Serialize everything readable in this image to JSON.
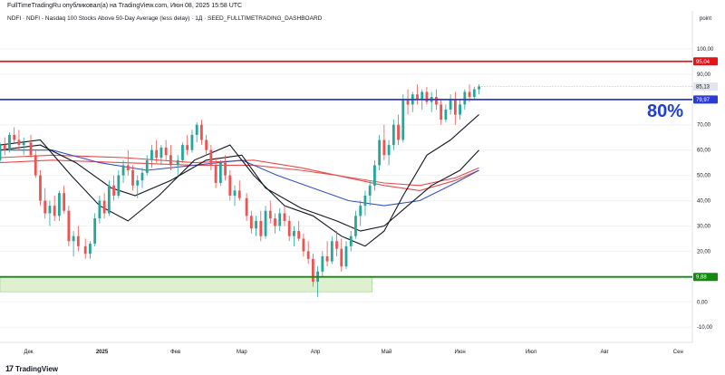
{
  "header": {
    "text": "FullTimeTradingRu опубликовал(а) на TradingView.com, Июн 08, 2025 15:58 UTC"
  },
  "legend": {
    "text": "NDFI · NDFI - Nasdaq 100 Stocks Above 50-Day Average (less delay) · 1Д · SEED_FULLTIMETRADING_DASHBOARD"
  },
  "annotation": {
    "text": "80%"
  },
  "branding": {
    "text": "TradingView"
  },
  "colors": {
    "up": "#26a69a",
    "down": "#ef5350",
    "red_line": "#e5141b",
    "blue_line": "#2b3bd6",
    "green_line": "#13890f",
    "zone_fill": "#dff0d0",
    "ema_red": "#ea4c4c",
    "ema_blue": "#3850c8",
    "ema_black": "#131722",
    "current_tag": "#e3e6ec"
  },
  "chart_data": {
    "type": "candlestick",
    "title": "NDFI - Nasdaq 100 Stocks Above 50-Day Average",
    "y_unit_label": "point",
    "ylim": [
      -16,
      115
    ],
    "y_ticks": [
      "100,00",
      "90,00",
      "80,00",
      "70,00",
      "60,00",
      "50,00",
      "40,00",
      "30,00",
      "20,00",
      "10,00",
      "0,00",
      "-10,00"
    ],
    "x_labels": [
      "Дек",
      "2025",
      "Фев",
      "Мар",
      "Апр",
      "Май",
      "Июн",
      "Июл",
      "Авг",
      "Сен"
    ],
    "x_label_days": [
      0,
      31,
      62,
      90,
      121,
      151,
      182,
      212,
      243,
      274
    ],
    "x_range_days": [
      -12,
      280
    ],
    "last_day": 190,
    "horizontal_levels": [
      {
        "value": 95.04,
        "label": "95,04",
        "color": "red_line"
      },
      {
        "value": 79.97,
        "label": "79,97",
        "color": "blue_line"
      },
      {
        "value": 9.88,
        "label": "9,88",
        "color": "green_line"
      }
    ],
    "current_value": {
      "value": 85.13,
      "label": "85,13"
    },
    "zone": {
      "x_from_day": -12,
      "x_to_day": 145,
      "y_from": 4,
      "y_to": 9.88
    },
    "moving_averages": [
      {
        "color": "ema_red",
        "values": [
          [
            -12,
            55
          ],
          [
            10,
            56
          ],
          [
            40,
            55
          ],
          [
            70,
            54
          ],
          [
            95,
            54
          ],
          [
            115,
            52
          ],
          [
            130,
            50
          ],
          [
            150,
            47
          ],
          [
            165,
            46
          ],
          [
            180,
            49
          ],
          [
            190,
            53
          ]
        ]
      },
      {
        "color": "ema_red",
        "values": [
          [
            -12,
            57
          ],
          [
            10,
            58
          ],
          [
            40,
            57
          ],
          [
            70,
            55
          ],
          [
            95,
            56
          ],
          [
            115,
            53
          ],
          [
            130,
            50
          ],
          [
            150,
            46
          ],
          [
            165,
            44
          ],
          [
            180,
            48
          ],
          [
            190,
            52
          ]
        ]
      },
      {
        "color": "ema_blue",
        "values": [
          [
            -12,
            60
          ],
          [
            10,
            60
          ],
          [
            30,
            55
          ],
          [
            50,
            52
          ],
          [
            70,
            54
          ],
          [
            90,
            56
          ],
          [
            105,
            50
          ],
          [
            120,
            45
          ],
          [
            135,
            40
          ],
          [
            150,
            38
          ],
          [
            165,
            40
          ],
          [
            180,
            47
          ],
          [
            190,
            52
          ]
        ]
      },
      {
        "color": "ema_black",
        "values": [
          [
            -12,
            60
          ],
          [
            5,
            62
          ],
          [
            20,
            55
          ],
          [
            35,
            45
          ],
          [
            45,
            42
          ],
          [
            60,
            48
          ],
          [
            75,
            56
          ],
          [
            90,
            58
          ],
          [
            100,
            45
          ],
          [
            115,
            37
          ],
          [
            130,
            32
          ],
          [
            140,
            28
          ],
          [
            150,
            30
          ],
          [
            160,
            38
          ],
          [
            170,
            46
          ],
          [
            182,
            52
          ],
          [
            190,
            60
          ]
        ]
      },
      {
        "color": "ema_black",
        "values": [
          [
            -12,
            62
          ],
          [
            5,
            64
          ],
          [
            18,
            50
          ],
          [
            30,
            38
          ],
          [
            42,
            32
          ],
          [
            55,
            42
          ],
          [
            70,
            56
          ],
          [
            85,
            62
          ],
          [
            95,
            50
          ],
          [
            108,
            38
          ],
          [
            120,
            34
          ],
          [
            132,
            26
          ],
          [
            142,
            22
          ],
          [
            150,
            28
          ],
          [
            158,
            42
          ],
          [
            168,
            58
          ],
          [
            178,
            64
          ],
          [
            190,
            74
          ]
        ]
      }
    ],
    "candles": [
      {
        "d": -12,
        "o": 56,
        "h": 63,
        "l": 55,
        "c": 62
      },
      {
        "d": -10,
        "o": 62,
        "h": 65,
        "l": 58,
        "c": 60
      },
      {
        "d": -8,
        "o": 60,
        "h": 67,
        "l": 59,
        "c": 66
      },
      {
        "d": -6,
        "o": 66,
        "h": 69,
        "l": 63,
        "c": 64
      },
      {
        "d": -4,
        "o": 64,
        "h": 68,
        "l": 60,
        "c": 62
      },
      {
        "d": -2,
        "o": 62,
        "h": 65,
        "l": 58,
        "c": 63
      },
      {
        "d": 1,
        "o": 63,
        "h": 66,
        "l": 57,
        "c": 58
      },
      {
        "d": 3,
        "o": 58,
        "h": 60,
        "l": 49,
        "c": 50
      },
      {
        "d": 5,
        "o": 50,
        "h": 52,
        "l": 38,
        "c": 40
      },
      {
        "d": 7,
        "o": 40,
        "h": 45,
        "l": 33,
        "c": 35
      },
      {
        "d": 9,
        "o": 35,
        "h": 40,
        "l": 30,
        "c": 38
      },
      {
        "d": 11,
        "o": 38,
        "h": 42,
        "l": 32,
        "c": 34
      },
      {
        "d": 13,
        "o": 34,
        "h": 44,
        "l": 32,
        "c": 43
      },
      {
        "d": 15,
        "o": 43,
        "h": 46,
        "l": 35,
        "c": 36
      },
      {
        "d": 17,
        "o": 36,
        "h": 38,
        "l": 22,
        "c": 24
      },
      {
        "d": 19,
        "o": 24,
        "h": 28,
        "l": 18,
        "c": 26
      },
      {
        "d": 21,
        "o": 26,
        "h": 30,
        "l": 20,
        "c": 22
      },
      {
        "d": 24,
        "o": 22,
        "h": 25,
        "l": 17,
        "c": 19
      },
      {
        "d": 26,
        "o": 19,
        "h": 24,
        "l": 17,
        "c": 23
      },
      {
        "d": 28,
        "o": 23,
        "h": 35,
        "l": 22,
        "c": 33
      },
      {
        "d": 30,
        "o": 33,
        "h": 42,
        "l": 31,
        "c": 40
      },
      {
        "d": 32,
        "o": 40,
        "h": 43,
        "l": 33,
        "c": 35
      },
      {
        "d": 34,
        "o": 35,
        "h": 48,
        "l": 34,
        "c": 46
      },
      {
        "d": 36,
        "o": 46,
        "h": 50,
        "l": 40,
        "c": 42
      },
      {
        "d": 38,
        "o": 42,
        "h": 52,
        "l": 41,
        "c": 50
      },
      {
        "d": 40,
        "o": 50,
        "h": 56,
        "l": 47,
        "c": 54
      },
      {
        "d": 42,
        "o": 54,
        "h": 60,
        "l": 50,
        "c": 52
      },
      {
        "d": 44,
        "o": 52,
        "h": 54,
        "l": 44,
        "c": 46
      },
      {
        "d": 46,
        "o": 46,
        "h": 50,
        "l": 41,
        "c": 48
      },
      {
        "d": 48,
        "o": 48,
        "h": 53,
        "l": 45,
        "c": 51
      },
      {
        "d": 50,
        "o": 51,
        "h": 58,
        "l": 50,
        "c": 56
      },
      {
        "d": 52,
        "o": 56,
        "h": 62,
        "l": 53,
        "c": 60
      },
      {
        "d": 54,
        "o": 60,
        "h": 64,
        "l": 55,
        "c": 57
      },
      {
        "d": 56,
        "o": 57,
        "h": 62,
        "l": 54,
        "c": 61
      },
      {
        "d": 58,
        "o": 61,
        "h": 64,
        "l": 56,
        "c": 58
      },
      {
        "d": 60,
        "o": 58,
        "h": 62,
        "l": 52,
        "c": 54
      },
      {
        "d": 63,
        "o": 54,
        "h": 58,
        "l": 50,
        "c": 56
      },
      {
        "d": 65,
        "o": 56,
        "h": 63,
        "l": 55,
        "c": 62
      },
      {
        "d": 67,
        "o": 62,
        "h": 66,
        "l": 58,
        "c": 60
      },
      {
        "d": 69,
        "o": 60,
        "h": 68,
        "l": 59,
        "c": 66
      },
      {
        "d": 71,
        "o": 66,
        "h": 71,
        "l": 63,
        "c": 70
      },
      {
        "d": 73,
        "o": 70,
        "h": 72,
        "l": 62,
        "c": 64
      },
      {
        "d": 75,
        "o": 64,
        "h": 66,
        "l": 58,
        "c": 60
      },
      {
        "d": 77,
        "o": 60,
        "h": 62,
        "l": 52,
        "c": 54
      },
      {
        "d": 79,
        "o": 54,
        "h": 57,
        "l": 45,
        "c": 47
      },
      {
        "d": 81,
        "o": 47,
        "h": 56,
        "l": 46,
        "c": 55
      },
      {
        "d": 83,
        "o": 55,
        "h": 58,
        "l": 48,
        "c": 50
      },
      {
        "d": 85,
        "o": 50,
        "h": 52,
        "l": 40,
        "c": 42
      },
      {
        "d": 87,
        "o": 42,
        "h": 46,
        "l": 38,
        "c": 44
      },
      {
        "d": 89,
        "o": 44,
        "h": 48,
        "l": 40,
        "c": 41
      },
      {
        "d": 92,
        "o": 41,
        "h": 43,
        "l": 32,
        "c": 34
      },
      {
        "d": 94,
        "o": 34,
        "h": 36,
        "l": 27,
        "c": 29
      },
      {
        "d": 96,
        "o": 29,
        "h": 34,
        "l": 26,
        "c": 32
      },
      {
        "d": 98,
        "o": 32,
        "h": 36,
        "l": 24,
        "c": 26
      },
      {
        "d": 100,
        "o": 26,
        "h": 38,
        "l": 25,
        "c": 36
      },
      {
        "d": 102,
        "o": 36,
        "h": 40,
        "l": 31,
        "c": 33
      },
      {
        "d": 104,
        "o": 33,
        "h": 35,
        "l": 27,
        "c": 30
      },
      {
        "d": 106,
        "o": 30,
        "h": 37,
        "l": 28,
        "c": 35
      },
      {
        "d": 108,
        "o": 35,
        "h": 38,
        "l": 30,
        "c": 32
      },
      {
        "d": 110,
        "o": 32,
        "h": 34,
        "l": 24,
        "c": 26
      },
      {
        "d": 112,
        "o": 26,
        "h": 30,
        "l": 22,
        "c": 28
      },
      {
        "d": 114,
        "o": 28,
        "h": 32,
        "l": 24,
        "c": 25
      },
      {
        "d": 116,
        "o": 25,
        "h": 27,
        "l": 18,
        "c": 20
      },
      {
        "d": 118,
        "o": 20,
        "h": 24,
        "l": 15,
        "c": 17
      },
      {
        "d": 120,
        "o": 17,
        "h": 19,
        "l": 6,
        "c": 8
      },
      {
        "d": 122,
        "o": 8,
        "h": 14,
        "l": 2,
        "c": 12
      },
      {
        "d": 124,
        "o": 12,
        "h": 20,
        "l": 10,
        "c": 18
      },
      {
        "d": 126,
        "o": 18,
        "h": 24,
        "l": 14,
        "c": 16
      },
      {
        "d": 128,
        "o": 16,
        "h": 26,
        "l": 15,
        "c": 24
      },
      {
        "d": 130,
        "o": 24,
        "h": 28,
        "l": 18,
        "c": 21
      },
      {
        "d": 132,
        "o": 21,
        "h": 25,
        "l": 12,
        "c": 14
      },
      {
        "d": 134,
        "o": 14,
        "h": 24,
        "l": 13,
        "c": 22
      },
      {
        "d": 136,
        "o": 22,
        "h": 28,
        "l": 20,
        "c": 26
      },
      {
        "d": 138,
        "o": 26,
        "h": 36,
        "l": 25,
        "c": 34
      },
      {
        "d": 140,
        "o": 34,
        "h": 40,
        "l": 30,
        "c": 38
      },
      {
        "d": 142,
        "o": 38,
        "h": 44,
        "l": 34,
        "c": 42
      },
      {
        "d": 144,
        "o": 42,
        "h": 48,
        "l": 38,
        "c": 46
      },
      {
        "d": 146,
        "o": 46,
        "h": 56,
        "l": 44,
        "c": 54
      },
      {
        "d": 148,
        "o": 54,
        "h": 66,
        "l": 52,
        "c": 64
      },
      {
        "d": 150,
        "o": 64,
        "h": 70,
        "l": 56,
        "c": 58
      },
      {
        "d": 152,
        "o": 58,
        "h": 64,
        "l": 54,
        "c": 62
      },
      {
        "d": 154,
        "o": 62,
        "h": 72,
        "l": 60,
        "c": 70
      },
      {
        "d": 156,
        "o": 70,
        "h": 74,
        "l": 62,
        "c": 64
      },
      {
        "d": 158,
        "o": 64,
        "h": 82,
        "l": 63,
        "c": 80
      },
      {
        "d": 160,
        "o": 80,
        "h": 84,
        "l": 74,
        "c": 78
      },
      {
        "d": 162,
        "o": 78,
        "h": 83,
        "l": 75,
        "c": 82
      },
      {
        "d": 164,
        "o": 82,
        "h": 86,
        "l": 78,
        "c": 80
      },
      {
        "d": 166,
        "o": 80,
        "h": 84,
        "l": 76,
        "c": 83
      },
      {
        "d": 168,
        "o": 83,
        "h": 85,
        "l": 78,
        "c": 79
      },
      {
        "d": 170,
        "o": 79,
        "h": 83,
        "l": 75,
        "c": 81
      },
      {
        "d": 172,
        "o": 81,
        "h": 84,
        "l": 76,
        "c": 78
      },
      {
        "d": 174,
        "o": 78,
        "h": 80,
        "l": 70,
        "c": 72
      },
      {
        "d": 176,
        "o": 72,
        "h": 78,
        "l": 71,
        "c": 76
      },
      {
        "d": 178,
        "o": 76,
        "h": 82,
        "l": 74,
        "c": 80
      },
      {
        "d": 180,
        "o": 80,
        "h": 83,
        "l": 70,
        "c": 74
      },
      {
        "d": 182,
        "o": 74,
        "h": 80,
        "l": 72,
        "c": 78
      },
      {
        "d": 184,
        "o": 78,
        "h": 84,
        "l": 76,
        "c": 83
      },
      {
        "d": 186,
        "o": 83,
        "h": 86,
        "l": 79,
        "c": 81
      },
      {
        "d": 188,
        "o": 81,
        "h": 85,
        "l": 80,
        "c": 84
      },
      {
        "d": 190,
        "o": 84,
        "h": 86,
        "l": 82,
        "c": 85.13
      }
    ]
  }
}
